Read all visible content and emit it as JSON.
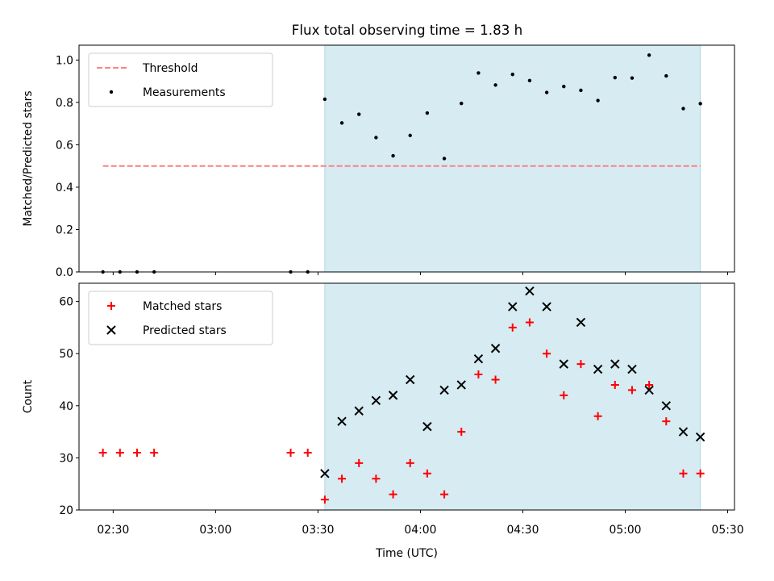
{
  "title": "Flux total observing time = 1.83 h",
  "colors": {
    "threshold": "#ff7f7f",
    "measurement": "#000000",
    "matched": "#ff0000",
    "predicted": "#000000",
    "span": "#add8e6"
  },
  "chart_data": [
    {
      "type": "scatter",
      "panel": "top",
      "ylabel": "Matched/Predicted stars",
      "ylim": [
        0,
        1.07
      ],
      "yticks": [
        0,
        0.2,
        0.4,
        0.6,
        0.8,
        1.0
      ],
      "ytick_labels": [
        "0.0",
        "0.2",
        "0.4",
        "0.6",
        "0.8",
        "1.0"
      ],
      "xlim": [
        "02:20",
        "05:32"
      ],
      "shaded_span": [
        "03:32",
        "05:22"
      ],
      "grid": false,
      "legend_position": "top-left",
      "legend": [
        {
          "label": "Threshold",
          "marker": "dashed-line",
          "color": "#ff7f7f"
        },
        {
          "label": "Measurements",
          "marker": "dot",
          "color": "#000000"
        }
      ],
      "threshold": {
        "name": "Threshold",
        "y": 0.5,
        "x": [
          "02:27",
          "05:22"
        ]
      },
      "series": [
        {
          "name": "Measurements",
          "marker": "dot",
          "x": [
            "02:27",
            "02:32",
            "02:37",
            "02:42",
            "03:22",
            "03:27",
            "03:32",
            "03:37",
            "03:42",
            "03:47",
            "03:52",
            "03:57",
            "04:02",
            "04:07",
            "04:12",
            "04:17",
            "04:22",
            "04:27",
            "04:32",
            "04:37",
            "04:42",
            "04:47",
            "04:52",
            "04:57",
            "05:02",
            "05:07",
            "05:12",
            "05:17",
            "05:22"
          ],
          "y": [
            0,
            0,
            0,
            0,
            0,
            0,
            0.815,
            0.703,
            0.744,
            0.634,
            0.548,
            0.644,
            0.75,
            0.535,
            0.795,
            0.939,
            0.882,
            0.932,
            0.903,
            0.847,
            0.875,
            0.857,
            0.809,
            0.917,
            0.915,
            1.023,
            0.925,
            0.771,
            0.794
          ]
        }
      ]
    },
    {
      "type": "scatter",
      "panel": "bottom",
      "xlabel": "Time (UTC)",
      "ylabel": "Count",
      "ylim": [
        20,
        63.5
      ],
      "yticks": [
        20,
        30,
        40,
        50,
        60
      ],
      "ytick_labels": [
        "20",
        "30",
        "40",
        "50",
        "60"
      ],
      "xlim": [
        "02:20",
        "05:32"
      ],
      "xticks": [
        "02:30",
        "03:00",
        "03:30",
        "04:00",
        "04:30",
        "05:00",
        "05:30"
      ],
      "xtick_labels": [
        "02:30",
        "03:00",
        "03:30",
        "04:00",
        "04:30",
        "05:00",
        "05:30"
      ],
      "shaded_span": [
        "03:32",
        "05:22"
      ],
      "grid": false,
      "legend_position": "top-left",
      "legend": [
        {
          "label": "Matched stars",
          "marker": "plus",
          "color": "#ff0000"
        },
        {
          "label": "Predicted stars",
          "marker": "x",
          "color": "#000000"
        }
      ],
      "series": [
        {
          "name": "Matched stars",
          "marker": "plus",
          "x": [
            "02:27",
            "02:32",
            "02:37",
            "02:42",
            "03:22",
            "03:27",
            "03:32",
            "03:37",
            "03:42",
            "03:47",
            "03:52",
            "03:57",
            "04:02",
            "04:07",
            "04:12",
            "04:17",
            "04:22",
            "04:27",
            "04:32",
            "04:37",
            "04:42",
            "04:47",
            "04:52",
            "04:57",
            "05:02",
            "05:07",
            "05:12",
            "05:17",
            "05:22"
          ],
          "y": [
            31,
            31,
            31,
            31,
            31,
            31,
            22,
            26,
            29,
            26,
            23,
            29,
            27,
            23,
            35,
            46,
            45,
            55,
            56,
            50,
            42,
            48,
            38,
            44,
            43,
            44,
            37,
            27,
            27
          ]
        },
        {
          "name": "Predicted stars",
          "marker": "x",
          "x": [
            "03:32",
            "03:37",
            "03:42",
            "03:47",
            "03:52",
            "03:57",
            "04:02",
            "04:07",
            "04:12",
            "04:17",
            "04:22",
            "04:27",
            "04:32",
            "04:37",
            "04:42",
            "04:47",
            "04:52",
            "04:57",
            "05:02",
            "05:07",
            "05:12",
            "05:17",
            "05:22"
          ],
          "y": [
            27,
            37,
            39,
            41,
            42,
            45,
            36,
            43,
            44,
            49,
            51,
            59,
            62,
            59,
            48,
            56,
            47,
            48,
            47,
            43,
            40,
            35,
            34
          ]
        }
      ]
    }
  ]
}
